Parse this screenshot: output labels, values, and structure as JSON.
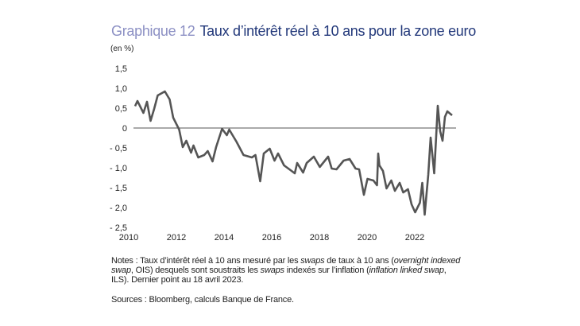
{
  "chart_data": {
    "type": "line",
    "title_prefix": "Graphique 12",
    "title": "Taux d’intérêt réel à 10 ans pour la zone euro",
    "ylabel": "(en %)",
    "xlabel": "",
    "ylim": [
      -2.5,
      1.5
    ],
    "xlim": [
      2010,
      2023.4
    ],
    "y_ticks": [
      1.5,
      1.0,
      0.5,
      0,
      -0.5,
      -1.0,
      -1.5,
      -2.0,
      -2.5
    ],
    "y_tick_labels": [
      "1,5",
      "1,0",
      "0,5",
      "0",
      "- 0,5",
      "- 1,0",
      "- 1,5",
      "- 2,0",
      "- 2,5"
    ],
    "x_ticks": [
      2010,
      2012,
      2014,
      2016,
      2018,
      2020,
      2022
    ],
    "x_tick_labels": [
      "2010",
      "2012",
      "2014",
      "2016",
      "2018",
      "2020",
      "2022"
    ],
    "grid": false,
    "zero_line": true,
    "line_color": "#555555",
    "series": [
      {
        "x": [
          2010.0,
          2010.1,
          2010.35,
          2010.5,
          2010.65,
          2010.8,
          2010.95,
          2011.25,
          2011.45,
          2011.6,
          2011.85,
          2012.0,
          2012.15,
          2012.35,
          2012.45,
          2012.65,
          2012.9,
          2013.05,
          2013.25,
          2013.4,
          2013.65,
          2013.85,
          2013.95,
          2014.25,
          2014.55,
          2014.9,
          2015.05,
          2015.25,
          2015.4,
          2015.65,
          2015.85,
          2016.0,
          2016.25,
          2016.5,
          2016.7,
          2016.8,
          2017.05,
          2017.2,
          2017.5,
          2017.75,
          2018.1,
          2018.25,
          2018.45,
          2018.75,
          2019.0,
          2019.25,
          2019.4,
          2019.6,
          2019.75,
          2020.0,
          2020.15,
          2020.2,
          2020.25,
          2020.4,
          2020.55,
          2020.75,
          2020.9,
          2021.1,
          2021.25,
          2021.45,
          2021.6,
          2021.75,
          2021.95,
          2022.05,
          2022.15,
          2022.3,
          2022.4,
          2022.55,
          2022.7,
          2022.8,
          2022.9,
          2023.0,
          2023.1,
          2023.3
        ],
        "y": [
          0.55,
          0.68,
          0.38,
          0.66,
          0.18,
          0.48,
          0.82,
          0.92,
          0.72,
          0.26,
          -0.04,
          -0.48,
          -0.32,
          -0.62,
          -0.44,
          -0.74,
          -0.68,
          -0.58,
          -0.84,
          -0.48,
          -0.02,
          -0.18,
          -0.04,
          -0.34,
          -0.68,
          -0.74,
          -0.68,
          -1.34,
          -0.64,
          -0.52,
          -0.82,
          -0.64,
          -0.94,
          -1.05,
          -1.14,
          -0.88,
          -1.12,
          -0.88,
          -0.72,
          -0.98,
          -0.72,
          -1.02,
          -1.04,
          -0.82,
          -0.78,
          -1.02,
          -1.04,
          -1.68,
          -1.28,
          -1.32,
          -1.44,
          -0.64,
          -0.94,
          -1.08,
          -1.52,
          -1.32,
          -1.58,
          -1.38,
          -1.62,
          -1.54,
          -1.92,
          -2.12,
          -1.88,
          -1.38,
          -2.18,
          -1.18,
          -0.24,
          -1.14,
          0.56,
          -0.08,
          -0.32,
          0.28,
          0.42,
          0.32
        ]
      }
    ]
  },
  "notes": {
    "line1_a": "Notes : Taux d’intérêt réel à 10 ans mesuré par les ",
    "line1_b": "swaps",
    "line1_c": " de taux à 10 ans (",
    "line1_d": "overnight indexed swap",
    "line1_e": ", OIS) desquels sont soustraits les ",
    "line1_f": "swaps",
    "line1_g": " indexés sur l’inflation (",
    "line1_h": "inflation linked swap",
    "line1_i": ", ILS). Dernier point au 18 avril 2023."
  },
  "sources": "Sources : Bloomberg, calculs Banque de France."
}
